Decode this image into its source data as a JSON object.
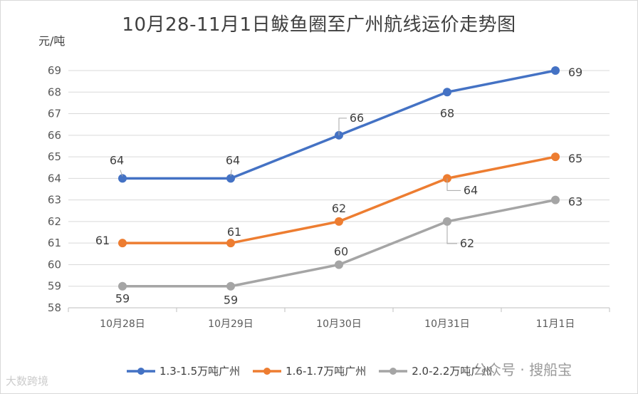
{
  "chart_data": {
    "type": "line",
    "title": "10月28-11月1日鲅鱼圈至广州航线运价走势图",
    "ylabel": "元/吨",
    "xlabel": "",
    "categories": [
      "10月28日",
      "10月29日",
      "10月30日",
      "10月31日",
      "11月1日"
    ],
    "ylim": [
      58,
      69
    ],
    "yticks": [
      58,
      59,
      60,
      61,
      62,
      63,
      64,
      65,
      66,
      67,
      68,
      69
    ],
    "grid": true,
    "legend_position": "bottom",
    "series": [
      {
        "name": "1.3-1.5万吨广州",
        "color": "#4472c4",
        "values": [
          64,
          64,
          66,
          68,
          69
        ]
      },
      {
        "name": "1.6-1.7万吨广州",
        "color": "#ed7d31",
        "values": [
          61,
          61,
          62,
          64,
          65
        ]
      },
      {
        "name": "2.0-2.2万吨广州",
        "color": "#a5a5a5",
        "values": [
          59,
          59,
          60,
          62,
          63
        ]
      }
    ]
  },
  "watermarks": {
    "left": "大数跨境",
    "right": "公众号 · 搜船宝"
  }
}
